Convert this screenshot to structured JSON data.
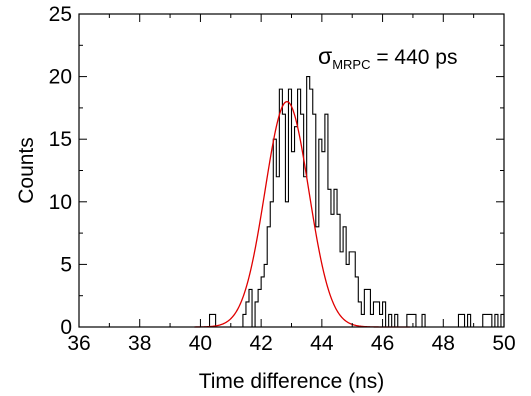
{
  "chart_data": {
    "type": "histogram_with_fit",
    "xlabel": "Time difference (ns)",
    "ylabel": "Counts",
    "xlim": [
      36,
      50
    ],
    "ylim": [
      0,
      25
    ],
    "x_ticks": [
      36,
      38,
      40,
      42,
      44,
      46,
      48,
      50
    ],
    "y_ticks": [
      0,
      5,
      10,
      15,
      20,
      25
    ],
    "grid": false,
    "annotation": {
      "sigma": "σ",
      "subscript": "MRPC",
      "text": " = 440 ps"
    },
    "histogram": {
      "name": "Counts",
      "color": "#000000",
      "bin_width": 0.1,
      "start": 40.1,
      "counts": [
        0,
        0,
        1,
        1,
        0,
        0,
        0,
        0,
        0,
        0,
        0,
        0,
        0,
        1,
        2,
        3,
        0,
        2,
        3,
        4,
        5,
        8,
        10,
        15,
        12,
        19,
        17,
        10,
        19,
        14,
        16,
        19,
        17,
        12,
        20,
        19,
        17,
        8,
        15,
        14,
        17,
        11,
        9,
        11,
        9,
        6,
        8,
        5,
        6,
        6,
        4,
        2,
        1,
        3,
        3,
        1,
        2,
        2,
        1,
        2,
        0,
        1,
        0,
        1,
        0,
        0,
        0,
        1,
        1,
        1,
        0,
        0,
        1,
        0,
        0,
        0,
        0,
        0,
        0,
        0,
        0,
        0,
        0,
        0,
        1,
        1,
        0,
        1,
        0,
        0,
        0,
        0,
        1,
        1,
        1,
        0,
        1,
        0,
        1
      ],
      "comment_excluded": false
    },
    "fit": {
      "name": "Gaussian fit",
      "color": "#e00000",
      "amplitude": 18.0,
      "mean": 42.85,
      "sigma": 0.72,
      "x_range": [
        39.8,
        46.9
      ]
    }
  }
}
